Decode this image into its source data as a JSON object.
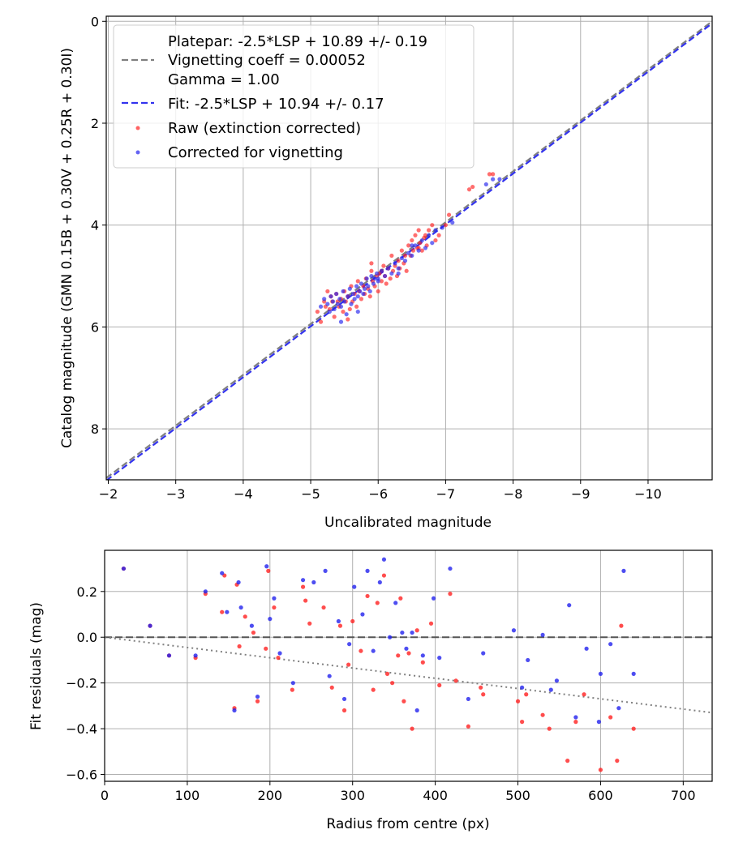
{
  "chart_data": [
    {
      "type": "scatter",
      "title": "",
      "xlabel": "Uncalibrated magnitude",
      "ylabel": "Catalog magnitude (GMN 0.15B + 0.30V + 0.25R + 0.30I)",
      "xlim": [
        -1.97,
        -10.95
      ],
      "ylim": [
        9.0,
        -0.1
      ],
      "xticks": [
        -2,
        -3,
        -4,
        -5,
        -6,
        -7,
        -8,
        -9,
        -10
      ],
      "xtick_labels": [
        "−2",
        "−3",
        "−4",
        "−5",
        "−6",
        "−7",
        "−8",
        "−9",
        "−10"
      ],
      "yticks": [
        0,
        2,
        4,
        6,
        8
      ],
      "ytick_labels": [
        "0",
        "2",
        "4",
        "6",
        "8"
      ],
      "grid": true,
      "legend_position": "top-left",
      "legend": [
        {
          "label": "Platepar: -2.5*LSP + 10.89 +/- 0.19",
          "style": "none",
          "color": ""
        },
        {
          "label": "Vignetting coeff = 0.00052",
          "style": "dashed-line",
          "color": "#808080"
        },
        {
          "label": "Gamma = 1.00",
          "style": "none",
          "color": ""
        },
        {
          "label": "Fit: -2.5*LSP + 10.94 +/- 0.17",
          "style": "dashed-line",
          "color": "#3333ee"
        },
        {
          "label": "Raw (extinction corrected)",
          "style": "point",
          "color": "#ff2020"
        },
        {
          "label": "Corrected for vignetting",
          "style": "point",
          "color": "#2222ee"
        }
      ],
      "lines": [
        {
          "name": "Platepar",
          "x": [
            -1.97,
            -10.95
          ],
          "y": [
            8.965,
            -0.0
          ],
          "color": "#808080"
        },
        {
          "name": "Fit",
          "x": [
            -1.97,
            -10.95
          ],
          "y": [
            9.015,
            0.04
          ],
          "color": "#3333ee"
        }
      ],
      "series": [
        {
          "name": "Raw (extinction corrected)",
          "color": "#ff2020",
          "x": [
            -5.1,
            -5.15,
            -5.2,
            -5.22,
            -5.25,
            -5.28,
            -5.3,
            -5.32,
            -5.35,
            -5.38,
            -5.4,
            -5.42,
            -5.45,
            -5.48,
            -5.5,
            -5.52,
            -5.55,
            -5.58,
            -5.6,
            -5.62,
            -5.65,
            -5.68,
            -5.7,
            -5.72,
            -5.75,
            -5.78,
            -5.8,
            -5.82,
            -5.85,
            -5.88,
            -5.9,
            -5.92,
            -5.95,
            -5.98,
            -6.0,
            -6.02,
            -6.05,
            -6.08,
            -6.1,
            -6.12,
            -6.15,
            -6.18,
            -6.2,
            -6.22,
            -6.25,
            -6.28,
            -6.3,
            -6.32,
            -6.35,
            -6.38,
            -6.4,
            -6.42,
            -6.45,
            -6.48,
            -6.5,
            -6.52,
            -6.55,
            -6.58,
            -6.6,
            -6.62,
            -6.65,
            -6.68,
            -6.7,
            -6.72,
            -6.75,
            -6.8,
            -6.85,
            -6.9,
            -7.0,
            -7.05,
            -7.35,
            -7.4,
            -7.65,
            -7.7,
            -5.55,
            -5.9,
            -6.05,
            -6.6
          ],
          "y": [
            5.7,
            5.9,
            5.5,
            5.6,
            5.3,
            5.65,
            5.4,
            5.5,
            5.8,
            5.35,
            5.5,
            5.6,
            5.45,
            5.7,
            5.3,
            5.5,
            5.4,
            5.65,
            5.2,
            5.5,
            5.35,
            5.6,
            5.1,
            5.3,
            5.45,
            5.2,
            5.35,
            5.05,
            5.25,
            5.4,
            4.9,
            5.1,
            5.2,
            5.0,
            5.3,
            4.95,
            5.1,
            4.8,
            5.0,
            5.15,
            4.85,
            5.05,
            4.6,
            4.9,
            4.8,
            5.0,
            4.7,
            4.85,
            4.5,
            4.75,
            4.6,
            4.9,
            4.4,
            4.6,
            4.3,
            4.5,
            4.2,
            4.45,
            4.1,
            4.35,
            4.5,
            4.25,
            4.2,
            4.4,
            4.1,
            4.0,
            4.3,
            4.2,
            4.0,
            3.8,
            3.3,
            3.25,
            3.0,
            3.0,
            5.85,
            4.75,
            4.9,
            4.45
          ]
        },
        {
          "name": "Corrected for vignetting",
          "color": "#2222ee",
          "x": [
            -5.15,
            -5.2,
            -5.25,
            -5.28,
            -5.3,
            -5.33,
            -5.35,
            -5.38,
            -5.4,
            -5.43,
            -5.45,
            -5.48,
            -5.5,
            -5.53,
            -5.55,
            -5.58,
            -5.6,
            -5.63,
            -5.65,
            -5.68,
            -5.7,
            -5.73,
            -5.75,
            -5.78,
            -5.8,
            -5.83,
            -5.85,
            -5.88,
            -5.9,
            -5.93,
            -5.95,
            -5.98,
            -6.0,
            -6.05,
            -6.1,
            -6.15,
            -6.2,
            -6.25,
            -6.3,
            -6.35,
            -6.4,
            -6.45,
            -6.5,
            -6.55,
            -6.6,
            -6.65,
            -6.7,
            -6.75,
            -6.8,
            -6.85,
            -6.95,
            -7.1,
            -7.6,
            -7.7,
            -7.8,
            -5.45,
            -5.7,
            -6.0,
            -6.3,
            -6.5
          ],
          "y": [
            5.6,
            5.45,
            5.55,
            5.7,
            5.4,
            5.5,
            5.65,
            5.35,
            5.55,
            5.45,
            5.6,
            5.3,
            5.5,
            5.75,
            5.4,
            5.25,
            5.55,
            5.35,
            5.45,
            5.2,
            5.4,
            5.3,
            5.15,
            5.35,
            5.25,
            5.05,
            5.2,
            5.3,
            5.0,
            5.15,
            5.05,
            4.95,
            5.1,
            4.9,
            5.0,
            4.85,
            4.95,
            4.75,
            4.85,
            4.65,
            4.7,
            4.55,
            4.6,
            4.4,
            4.5,
            4.3,
            4.45,
            4.2,
            4.35,
            4.1,
            4.05,
            3.95,
            3.2,
            3.1,
            3.1,
            5.9,
            5.7,
            5.05,
            4.95,
            4.4
          ]
        }
      ]
    },
    {
      "type": "scatter",
      "title": "",
      "xlabel": "Radius from centre (px)",
      "ylabel": "Fit residuals (mag)",
      "xlim": [
        0,
        735
      ],
      "ylim": [
        -0.63,
        0.38
      ],
      "xticks": [
        0,
        100,
        200,
        300,
        400,
        500,
        600,
        700
      ],
      "xtick_labels": [
        "0",
        "100",
        "200",
        "300",
        "400",
        "500",
        "600",
        "700"
      ],
      "yticks": [
        0.2,
        0.0,
        -0.2,
        -0.4,
        -0.6
      ],
      "ytick_labels": [
        "0.2",
        "0.0",
        "−0.2",
        "−0.4",
        "−0.6"
      ],
      "grid": true,
      "lines": [
        {
          "name": "zero",
          "x": [
            0,
            735
          ],
          "y": [
            0.0,
            0.0
          ],
          "color": "#555555",
          "style": "dashed"
        },
        {
          "name": "vignetting model",
          "x": [
            0,
            735
          ],
          "y": [
            0.0,
            -0.33
          ],
          "color": "#808080",
          "style": "dotted"
        }
      ],
      "series": [
        {
          "name": "Raw (extinction corrected)",
          "color": "#ff2020",
          "x": [
            23,
            55,
            78,
            110,
            122,
            142,
            145,
            157,
            160,
            163,
            170,
            180,
            185,
            195,
            198,
            205,
            210,
            227,
            240,
            243,
            248,
            265,
            275,
            285,
            290,
            295,
            300,
            310,
            318,
            325,
            330,
            338,
            342,
            348,
            355,
            358,
            362,
            368,
            372,
            378,
            385,
            395,
            405,
            418,
            425,
            440,
            455,
            458,
            500,
            505,
            510,
            530,
            538,
            560,
            570,
            580,
            600,
            612,
            620,
            625,
            640
          ],
          "x_note": "",
          "y": [
            0.3,
            0.05,
            -0.08,
            -0.09,
            0.19,
            0.11,
            0.27,
            -0.31,
            0.23,
            -0.04,
            0.09,
            0.02,
            -0.28,
            -0.05,
            0.29,
            0.13,
            -0.09,
            -0.23,
            0.22,
            0.16,
            0.06,
            0.13,
            -0.22,
            0.05,
            -0.32,
            -0.12,
            0.07,
            -0.06,
            0.18,
            -0.23,
            0.15,
            0.27,
            -0.16,
            -0.2,
            -0.08,
            0.17,
            -0.28,
            -0.07,
            -0.4,
            0.03,
            -0.11,
            0.06,
            -0.21,
            0.19,
            -0.19,
            -0.39,
            -0.22,
            -0.25,
            -0.28,
            -0.37,
            -0.25,
            -0.34,
            -0.4,
            -0.54,
            -0.37,
            -0.25,
            -0.58,
            -0.35,
            -0.54,
            0.05,
            -0.4
          ]
        },
        {
          "name": "Corrected for vignetting",
          "color": "#2222ee",
          "x": [
            23,
            55,
            78,
            110,
            122,
            142,
            148,
            157,
            162,
            165,
            178,
            185,
            196,
            200,
            205,
            212,
            228,
            240,
            253,
            267,
            272,
            283,
            290,
            296,
            302,
            312,
            318,
            325,
            333,
            338,
            345,
            352,
            360,
            365,
            372,
            378,
            385,
            398,
            405,
            418,
            440,
            458,
            495,
            505,
            512,
            530,
            540,
            547,
            562,
            570,
            583,
            598,
            600,
            612,
            622,
            628,
            640
          ],
          "y": [
            0.3,
            0.05,
            -0.08,
            -0.08,
            0.2,
            0.28,
            0.11,
            -0.32,
            0.24,
            0.13,
            0.05,
            -0.26,
            0.31,
            0.08,
            0.17,
            -0.07,
            -0.2,
            0.25,
            0.24,
            0.29,
            -0.17,
            0.07,
            -0.27,
            -0.03,
            0.22,
            0.1,
            0.29,
            -0.06,
            0.24,
            0.34,
            0.0,
            0.15,
            0.02,
            -0.05,
            0.02,
            -0.32,
            -0.08,
            0.17,
            -0.09,
            0.3,
            -0.27,
            -0.07,
            0.03,
            -0.22,
            -0.1,
            0.01,
            -0.23,
            -0.19,
            0.14,
            -0.35,
            -0.05,
            -0.37,
            -0.16,
            -0.03,
            -0.31,
            0.29,
            -0.16
          ]
        }
      ]
    }
  ]
}
